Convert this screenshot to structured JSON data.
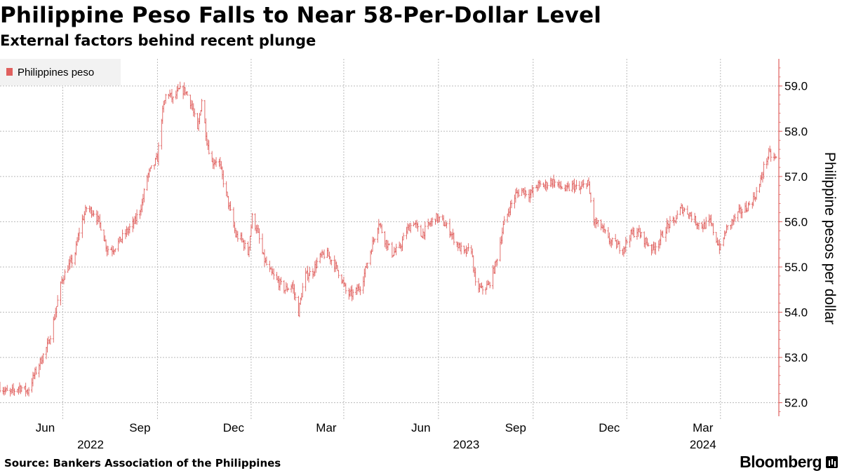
{
  "header": {
    "title": "Philippine Peso Falls to Near 58-Per-Dollar Level",
    "subtitle": "External factors behind recent plunge"
  },
  "footer": {
    "source": "Source: Bankers Association of the Philippines",
    "brand": "Bloomberg",
    "brand_logo_icon": "bloomberg-terminal-icon"
  },
  "colors": {
    "series": "#e0605e",
    "axis": "#e0605e",
    "grid": "#bbbbbb",
    "legend_bg": "#f2f2f2"
  },
  "chart_data": {
    "type": "ohlc",
    "title": "Philippine Peso Falls to Near 58-Per-Dollar Level",
    "subtitle": "External factors behind recent plunge",
    "ylabel": "Philippine pesos per dollar",
    "xlabel": "",
    "ylim": [
      51.7,
      59.6
    ],
    "y_ticks": [
      52.0,
      53.0,
      54.0,
      55.0,
      56.0,
      57.0,
      58.0,
      59.0
    ],
    "y_tick_labels": [
      "52.0",
      "53.0",
      "54.0",
      "55.0",
      "56.0",
      "57.0",
      "58.0",
      "59.0"
    ],
    "y_axis_position": "right",
    "xlim": [
      "2022-04-01",
      "2024-04-24"
    ],
    "x_ticks": [
      {
        "date": "2022-06-01",
        "label": "Jun"
      },
      {
        "date": "2022-09-01",
        "label": "Sep"
      },
      {
        "date": "2022-12-01",
        "label": "Dec"
      },
      {
        "date": "2023-03-01",
        "label": "Mar"
      },
      {
        "date": "2023-06-01",
        "label": "Jun"
      },
      {
        "date": "2023-09-01",
        "label": "Sep"
      },
      {
        "date": "2023-12-01",
        "label": "Dec"
      },
      {
        "date": "2024-03-01",
        "label": "Mar"
      }
    ],
    "year_labels": [
      {
        "date": "2022-07-15",
        "label": "2022"
      },
      {
        "date": "2023-07-15",
        "label": "2023"
      },
      {
        "date": "2024-03-01",
        "label": "2024"
      }
    ],
    "grid": true,
    "legend": {
      "position": "top-left",
      "entries": [
        "Philippines peso"
      ]
    },
    "series": [
      {
        "name": "Philippines peso",
        "points": [
          [
            "2022-04-01",
            52.35
          ],
          [
            "2022-04-10",
            52.2
          ],
          [
            "2022-04-20",
            52.35
          ],
          [
            "2022-04-28",
            52.25
          ],
          [
            "2022-05-04",
            52.6
          ],
          [
            "2022-05-10",
            52.9
          ],
          [
            "2022-05-18",
            53.3
          ],
          [
            "2022-05-24",
            53.9
          ],
          [
            "2022-05-31",
            54.7
          ],
          [
            "2022-06-06",
            55.0
          ],
          [
            "2022-06-12",
            55.2
          ],
          [
            "2022-06-18",
            55.9
          ],
          [
            "2022-06-24",
            56.3
          ],
          [
            "2022-07-02",
            56.2
          ],
          [
            "2022-07-08",
            55.9
          ],
          [
            "2022-07-14",
            55.4
          ],
          [
            "2022-07-20",
            55.4
          ],
          [
            "2022-07-27",
            55.6
          ],
          [
            "2022-08-03",
            55.8
          ],
          [
            "2022-08-10",
            56.0
          ],
          [
            "2022-08-17",
            56.4
          ],
          [
            "2022-08-22",
            57.0
          ],
          [
            "2022-08-27",
            57.2
          ],
          [
            "2022-09-01",
            57.4
          ],
          [
            "2022-09-05",
            58.3
          ],
          [
            "2022-09-10",
            58.9
          ],
          [
            "2022-09-16",
            58.7
          ],
          [
            "2022-09-22",
            58.9
          ],
          [
            "2022-09-28",
            58.9
          ],
          [
            "2022-10-04",
            58.6
          ],
          [
            "2022-10-10",
            58.0
          ],
          [
            "2022-10-14",
            58.7
          ],
          [
            "2022-10-19",
            57.8
          ],
          [
            "2022-10-24",
            57.3
          ],
          [
            "2022-10-30",
            57.4
          ],
          [
            "2022-11-05",
            56.8
          ],
          [
            "2022-11-10",
            56.3
          ],
          [
            "2022-11-16",
            55.7
          ],
          [
            "2022-11-22",
            55.6
          ],
          [
            "2022-11-28",
            55.3
          ],
          [
            "2022-12-02",
            56.1
          ],
          [
            "2022-12-07",
            55.8
          ],
          [
            "2022-12-13",
            55.2
          ],
          [
            "2022-12-19",
            54.9
          ],
          [
            "2022-12-26",
            54.7
          ],
          [
            "2023-01-03",
            54.5
          ],
          [
            "2023-01-10",
            54.6
          ],
          [
            "2023-01-16",
            54.0
          ],
          [
            "2023-01-22",
            54.8
          ],
          [
            "2023-01-30",
            54.9
          ],
          [
            "2023-02-05",
            55.2
          ],
          [
            "2023-02-12",
            55.3
          ],
          [
            "2023-02-19",
            55.1
          ],
          [
            "2023-02-26",
            54.8
          ],
          [
            "2023-03-04",
            54.4
          ],
          [
            "2023-03-11",
            54.4
          ],
          [
            "2023-03-18",
            54.6
          ],
          [
            "2023-03-24",
            55.1
          ],
          [
            "2023-03-30",
            55.6
          ],
          [
            "2023-04-04",
            56.0
          ],
          [
            "2023-04-10",
            55.6
          ],
          [
            "2023-04-17",
            55.3
          ],
          [
            "2023-04-24",
            55.4
          ],
          [
            "2023-05-01",
            55.8
          ],
          [
            "2023-05-08",
            56.0
          ],
          [
            "2023-05-15",
            55.7
          ],
          [
            "2023-05-22",
            55.9
          ],
          [
            "2023-05-29",
            56.1
          ],
          [
            "2023-06-05",
            56.0
          ],
          [
            "2023-06-12",
            55.8
          ],
          [
            "2023-06-19",
            55.5
          ],
          [
            "2023-06-26",
            55.3
          ],
          [
            "2023-07-03",
            55.4
          ],
          [
            "2023-07-07",
            54.6
          ],
          [
            "2023-07-13",
            54.5
          ],
          [
            "2023-07-20",
            54.6
          ],
          [
            "2023-07-27",
            55.1
          ],
          [
            "2023-08-03",
            55.9
          ],
          [
            "2023-08-09",
            56.3
          ],
          [
            "2023-08-15",
            56.6
          ],
          [
            "2023-08-22",
            56.7
          ],
          [
            "2023-08-29",
            56.6
          ],
          [
            "2023-09-05",
            56.8
          ],
          [
            "2023-09-12",
            56.8
          ],
          [
            "2023-09-19",
            56.9
          ],
          [
            "2023-09-26",
            56.8
          ],
          [
            "2023-10-03",
            56.7
          ],
          [
            "2023-10-10",
            56.8
          ],
          [
            "2023-10-16",
            56.7
          ],
          [
            "2023-10-24",
            56.9
          ],
          [
            "2023-10-30",
            56.0
          ],
          [
            "2023-11-06",
            55.9
          ],
          [
            "2023-11-13",
            55.6
          ],
          [
            "2023-11-20",
            55.5
          ],
          [
            "2023-11-27",
            55.4
          ],
          [
            "2023-12-04",
            55.7
          ],
          [
            "2023-12-11",
            55.8
          ],
          [
            "2023-12-18",
            55.6
          ],
          [
            "2023-12-26",
            55.4
          ],
          [
            "2024-01-02",
            55.6
          ],
          [
            "2024-01-09",
            55.9
          ],
          [
            "2024-01-16",
            56.0
          ],
          [
            "2024-01-23",
            56.3
          ],
          [
            "2024-01-30",
            56.2
          ],
          [
            "2024-02-06",
            56.0
          ],
          [
            "2024-02-13",
            55.9
          ],
          [
            "2024-02-20",
            56.0
          ],
          [
            "2024-02-26",
            55.6
          ],
          [
            "2024-03-01",
            55.4
          ],
          [
            "2024-03-06",
            55.8
          ],
          [
            "2024-03-12",
            56.0
          ],
          [
            "2024-03-19",
            56.2
          ],
          [
            "2024-03-26",
            56.3
          ],
          [
            "2024-04-02",
            56.5
          ],
          [
            "2024-04-08",
            56.8
          ],
          [
            "2024-04-12",
            57.2
          ],
          [
            "2024-04-17",
            57.5
          ],
          [
            "2024-04-22",
            57.4
          ]
        ]
      }
    ]
  }
}
